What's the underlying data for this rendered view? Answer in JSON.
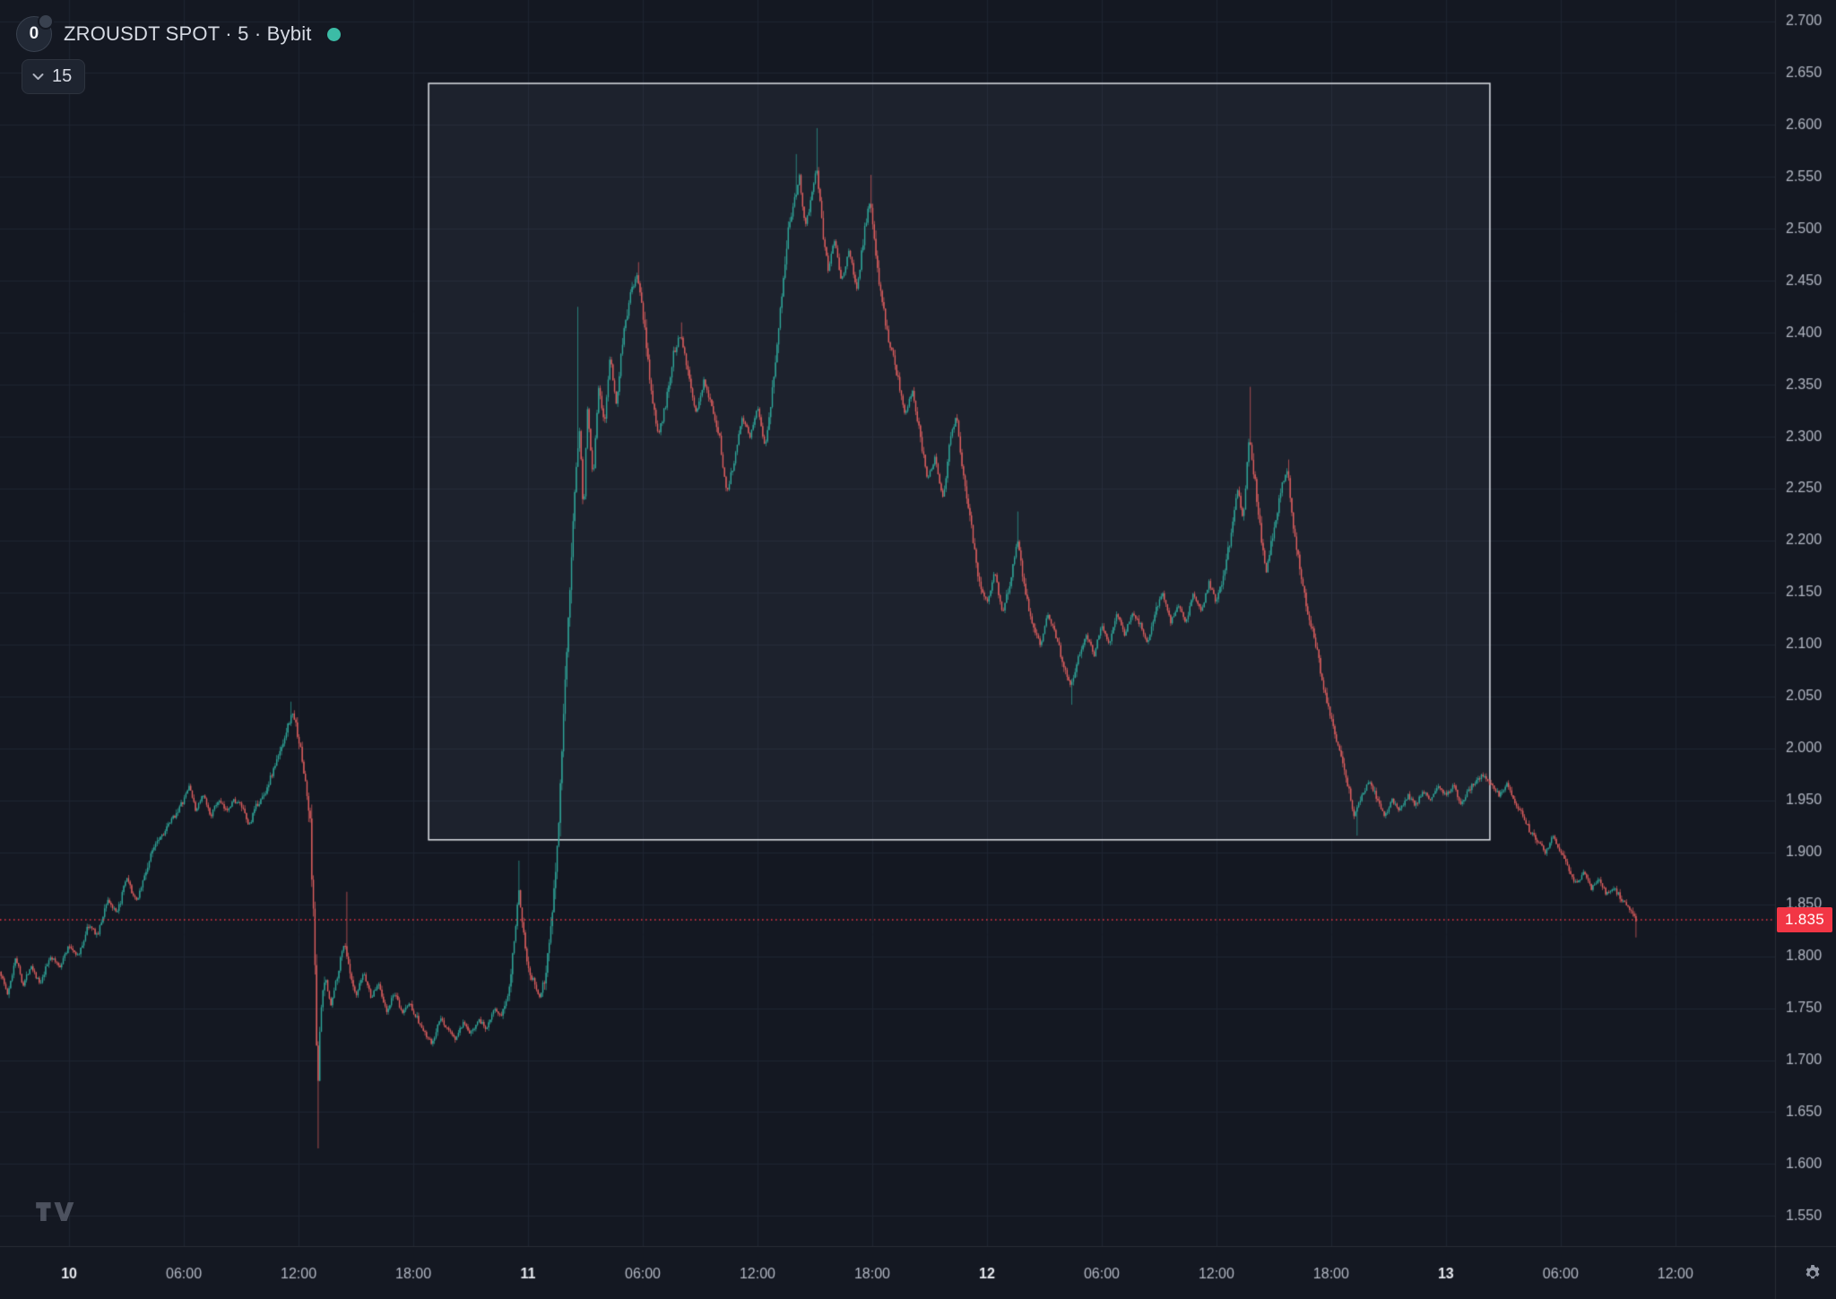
{
  "header": {
    "symbol_title": "ZROUSDT SPOT · 5 · Bybit",
    "logo_text": "0",
    "interval_collapsed_label": "15",
    "market_status": "open"
  },
  "price_label": {
    "value": "1.835"
  },
  "colors": {
    "background": "#141822",
    "grid": "#1e2431",
    "up": "#2fa79a",
    "down": "#e05f5f",
    "axis_text": "#b2b7c3",
    "axis_text_major": "#e6e8ee",
    "price_line": "#f23645",
    "price_label_bg": "#f23645",
    "rect_border": "#dfe2e8",
    "rect_fill": "rgba(190,202,225,0.06)"
  },
  "chart_data": {
    "type": "candlestick",
    "title": "ZROUSDT SPOT · 5 · Bybit",
    "exchange": "Bybit",
    "interval_minutes": 5,
    "last_price": 1.835,
    "ylim": [
      1.525,
      2.72
    ],
    "grid": true,
    "y_ticks": [
      2.7,
      2.65,
      2.6,
      2.55,
      2.5,
      2.45,
      2.4,
      2.35,
      2.3,
      2.25,
      2.2,
      2.15,
      2.1,
      2.05,
      2.0,
      1.95,
      1.9,
      1.85,
      1.8,
      1.75,
      1.7,
      1.65,
      1.6,
      1.55
    ],
    "x_ticks": [
      {
        "label": "10",
        "t": 0,
        "major": true
      },
      {
        "label": "06:00",
        "t": 6,
        "major": false
      },
      {
        "label": "12:00",
        "t": 12,
        "major": false
      },
      {
        "label": "18:00",
        "t": 18,
        "major": false
      },
      {
        "label": "11",
        "t": 24,
        "major": true
      },
      {
        "label": "06:00",
        "t": 30,
        "major": false
      },
      {
        "label": "12:00",
        "t": 36,
        "major": false
      },
      {
        "label": "18:00",
        "t": 42,
        "major": false
      },
      {
        "label": "12",
        "t": 48,
        "major": true
      },
      {
        "label": "06:00",
        "t": 54,
        "major": false
      },
      {
        "label": "12:00",
        "t": 60,
        "major": false
      },
      {
        "label": "18:00",
        "t": 66,
        "major": false
      },
      {
        "label": "13",
        "t": 72,
        "major": true
      },
      {
        "label": "06:00",
        "t": 78,
        "major": false
      },
      {
        "label": "12:00",
        "t": 84,
        "major": false
      }
    ],
    "t_start": -3.6,
    "t_end": 81.9,
    "candle_interval_hours": 0.0833333,
    "selection_rect": {
      "t0": 18.8,
      "t1": 74.3,
      "price_top": 2.64,
      "price_bottom": 1.912
    },
    "waypoints": [
      [
        -3.6,
        1.785
      ],
      [
        -3.2,
        1.762
      ],
      [
        -2.8,
        1.8
      ],
      [
        -2.4,
        1.772
      ],
      [
        -2.0,
        1.792
      ],
      [
        -1.5,
        1.772
      ],
      [
        -1.0,
        1.8
      ],
      [
        -0.5,
        1.79
      ],
      [
        0.0,
        1.81
      ],
      [
        0.5,
        1.8
      ],
      [
        1.0,
        1.83
      ],
      [
        1.5,
        1.82
      ],
      [
        2.0,
        1.855
      ],
      [
        2.5,
        1.84
      ],
      [
        3.0,
        1.875
      ],
      [
        3.5,
        1.852
      ],
      [
        4.0,
        1.88
      ],
      [
        4.5,
        1.91
      ],
      [
        5.0,
        1.92
      ],
      [
        5.5,
        1.935
      ],
      [
        6.0,
        1.95
      ],
      [
        6.3,
        1.965
      ],
      [
        6.6,
        1.94
      ],
      [
        7.0,
        1.955
      ],
      [
        7.4,
        1.935
      ],
      [
        7.8,
        1.95
      ],
      [
        8.2,
        1.94
      ],
      [
        8.6,
        1.95
      ],
      [
        9.0,
        1.945
      ],
      [
        9.4,
        1.925
      ],
      [
        9.8,
        1.945
      ],
      [
        10.2,
        1.955
      ],
      [
        10.6,
        1.975
      ],
      [
        11.0,
        1.995
      ],
      [
        11.4,
        2.02
      ],
      [
        11.7,
        2.035
      ],
      [
        12.0,
        2.01
      ],
      [
        12.3,
        1.975
      ],
      [
        12.6,
        1.93
      ],
      [
        12.85,
        1.8
      ],
      [
        13.0,
        1.67
      ],
      [
        13.15,
        1.745
      ],
      [
        13.4,
        1.78
      ],
      [
        13.7,
        1.752
      ],
      [
        14.0,
        1.78
      ],
      [
        14.4,
        1.815
      ],
      [
        14.7,
        1.78
      ],
      [
        15.0,
        1.76
      ],
      [
        15.4,
        1.785
      ],
      [
        15.8,
        1.76
      ],
      [
        16.2,
        1.775
      ],
      [
        16.6,
        1.745
      ],
      [
        17.0,
        1.765
      ],
      [
        17.4,
        1.745
      ],
      [
        17.8,
        1.755
      ],
      [
        18.2,
        1.74
      ],
      [
        18.6,
        1.725
      ],
      [
        19.0,
        1.715
      ],
      [
        19.4,
        1.74
      ],
      [
        19.8,
        1.73
      ],
      [
        20.2,
        1.72
      ],
      [
        20.6,
        1.735
      ],
      [
        21.0,
        1.725
      ],
      [
        21.4,
        1.74
      ],
      [
        21.8,
        1.73
      ],
      [
        22.2,
        1.75
      ],
      [
        22.6,
        1.74
      ],
      [
        23.0,
        1.77
      ],
      [
        23.3,
        1.82
      ],
      [
        23.5,
        1.865
      ],
      [
        23.8,
        1.82
      ],
      [
        24.0,
        1.79
      ],
      [
        24.3,
        1.775
      ],
      [
        24.6,
        1.76
      ],
      [
        24.9,
        1.78
      ],
      [
        25.2,
        1.83
      ],
      [
        25.5,
        1.9
      ],
      [
        25.8,
        2.0
      ],
      [
        26.1,
        2.12
      ],
      [
        26.4,
        2.24
      ],
      [
        26.7,
        2.31
      ],
      [
        26.9,
        2.22
      ],
      [
        27.1,
        2.33
      ],
      [
        27.4,
        2.26
      ],
      [
        27.7,
        2.35
      ],
      [
        28.0,
        2.31
      ],
      [
        28.3,
        2.38
      ],
      [
        28.6,
        2.33
      ],
      [
        29.0,
        2.4
      ],
      [
        29.4,
        2.44
      ],
      [
        29.7,
        2.455
      ],
      [
        30.0,
        2.42
      ],
      [
        30.4,
        2.35
      ],
      [
        30.8,
        2.3
      ],
      [
        31.2,
        2.33
      ],
      [
        31.6,
        2.38
      ],
      [
        32.0,
        2.4
      ],
      [
        32.4,
        2.36
      ],
      [
        32.8,
        2.32
      ],
      [
        33.2,
        2.355
      ],
      [
        33.6,
        2.33
      ],
      [
        34.0,
        2.3
      ],
      [
        34.4,
        2.245
      ],
      [
        34.8,
        2.28
      ],
      [
        35.2,
        2.32
      ],
      [
        35.6,
        2.3
      ],
      [
        36.0,
        2.33
      ],
      [
        36.4,
        2.29
      ],
      [
        36.8,
        2.35
      ],
      [
        37.2,
        2.42
      ],
      [
        37.6,
        2.5
      ],
      [
        37.9,
        2.525
      ],
      [
        38.2,
        2.55
      ],
      [
        38.5,
        2.5
      ],
      [
        38.8,
        2.53
      ],
      [
        39.1,
        2.56
      ],
      [
        39.4,
        2.5
      ],
      [
        39.7,
        2.46
      ],
      [
        40.0,
        2.49
      ],
      [
        40.4,
        2.45
      ],
      [
        40.8,
        2.48
      ],
      [
        41.2,
        2.44
      ],
      [
        41.6,
        2.5
      ],
      [
        41.9,
        2.53
      ],
      [
        42.2,
        2.47
      ],
      [
        42.5,
        2.43
      ],
      [
        42.9,
        2.39
      ],
      [
        43.3,
        2.36
      ],
      [
        43.7,
        2.32
      ],
      [
        44.1,
        2.345
      ],
      [
        44.5,
        2.3
      ],
      [
        44.9,
        2.26
      ],
      [
        45.3,
        2.28
      ],
      [
        45.7,
        2.24
      ],
      [
        46.1,
        2.3
      ],
      [
        46.4,
        2.32
      ],
      [
        46.8,
        2.26
      ],
      [
        47.2,
        2.21
      ],
      [
        47.6,
        2.16
      ],
      [
        48.0,
        2.14
      ],
      [
        48.4,
        2.17
      ],
      [
        48.8,
        2.13
      ],
      [
        49.2,
        2.16
      ],
      [
        49.6,
        2.2
      ],
      [
        50.0,
        2.15
      ],
      [
        50.4,
        2.12
      ],
      [
        50.8,
        2.1
      ],
      [
        51.2,
        2.13
      ],
      [
        51.6,
        2.11
      ],
      [
        52.0,
        2.08
      ],
      [
        52.4,
        2.06
      ],
      [
        52.8,
        2.09
      ],
      [
        53.2,
        2.11
      ],
      [
        53.6,
        2.09
      ],
      [
        54.0,
        2.12
      ],
      [
        54.4,
        2.1
      ],
      [
        54.8,
        2.13
      ],
      [
        55.2,
        2.11
      ],
      [
        55.6,
        2.13
      ],
      [
        56.0,
        2.12
      ],
      [
        56.4,
        2.1
      ],
      [
        56.8,
        2.13
      ],
      [
        57.2,
        2.15
      ],
      [
        57.6,
        2.12
      ],
      [
        58.0,
        2.14
      ],
      [
        58.4,
        2.12
      ],
      [
        58.8,
        2.15
      ],
      [
        59.2,
        2.13
      ],
      [
        59.6,
        2.16
      ],
      [
        60.0,
        2.14
      ],
      [
        60.4,
        2.17
      ],
      [
        60.8,
        2.21
      ],
      [
        61.1,
        2.25
      ],
      [
        61.4,
        2.22
      ],
      [
        61.7,
        2.3
      ],
      [
        62.0,
        2.26
      ],
      [
        62.3,
        2.21
      ],
      [
        62.6,
        2.17
      ],
      [
        63.0,
        2.21
      ],
      [
        63.4,
        2.25
      ],
      [
        63.7,
        2.27
      ],
      [
        64.0,
        2.22
      ],
      [
        64.4,
        2.17
      ],
      [
        64.8,
        2.13
      ],
      [
        65.2,
        2.1
      ],
      [
        65.6,
        2.06
      ],
      [
        66.0,
        2.03
      ],
      [
        66.4,
        2.0
      ],
      [
        66.8,
        1.97
      ],
      [
        67.2,
        1.935
      ],
      [
        67.6,
        1.955
      ],
      [
        68.0,
        1.97
      ],
      [
        68.4,
        1.95
      ],
      [
        68.8,
        1.935
      ],
      [
        69.2,
        1.95
      ],
      [
        69.6,
        1.94
      ],
      [
        70.0,
        1.955
      ],
      [
        70.4,
        1.945
      ],
      [
        70.8,
        1.96
      ],
      [
        71.2,
        1.95
      ],
      [
        71.6,
        1.965
      ],
      [
        72.0,
        1.955
      ],
      [
        72.4,
        1.965
      ],
      [
        72.8,
        1.945
      ],
      [
        73.2,
        1.96
      ],
      [
        73.6,
        1.97
      ],
      [
        74.0,
        1.975
      ],
      [
        74.4,
        1.965
      ],
      [
        74.8,
        1.955
      ],
      [
        75.2,
        1.965
      ],
      [
        75.6,
        1.95
      ],
      [
        76.0,
        1.935
      ],
      [
        76.4,
        1.92
      ],
      [
        76.8,
        1.91
      ],
      [
        77.2,
        1.9
      ],
      [
        77.6,
        1.915
      ],
      [
        78.0,
        1.9
      ],
      [
        78.4,
        1.885
      ],
      [
        78.8,
        1.87
      ],
      [
        79.2,
        1.88
      ],
      [
        79.6,
        1.865
      ],
      [
        80.0,
        1.875
      ],
      [
        80.4,
        1.86
      ],
      [
        80.8,
        1.865
      ],
      [
        81.2,
        1.855
      ],
      [
        81.6,
        1.845
      ],
      [
        81.9,
        1.835
      ]
    ],
    "wick_events": [
      {
        "t": 11.6,
        "high": 2.045
      },
      {
        "t": 13.0,
        "low": 1.615
      },
      {
        "t": 14.5,
        "high": 1.862
      },
      {
        "t": 23.5,
        "high": 1.892
      },
      {
        "t": 26.6,
        "high": 2.425
      },
      {
        "t": 29.7,
        "high": 2.468
      },
      {
        "t": 32.0,
        "high": 2.41
      },
      {
        "t": 37.95,
        "high": 2.572
      },
      {
        "t": 39.1,
        "high": 2.597
      },
      {
        "t": 41.9,
        "high": 2.552
      },
      {
        "t": 49.6,
        "high": 2.228
      },
      {
        "t": 52.4,
        "low": 2.042
      },
      {
        "t": 61.7,
        "high": 2.348
      },
      {
        "t": 63.7,
        "high": 2.278
      },
      {
        "t": 67.3,
        "low": 1.916
      },
      {
        "t": 81.9,
        "low": 1.818
      }
    ]
  }
}
